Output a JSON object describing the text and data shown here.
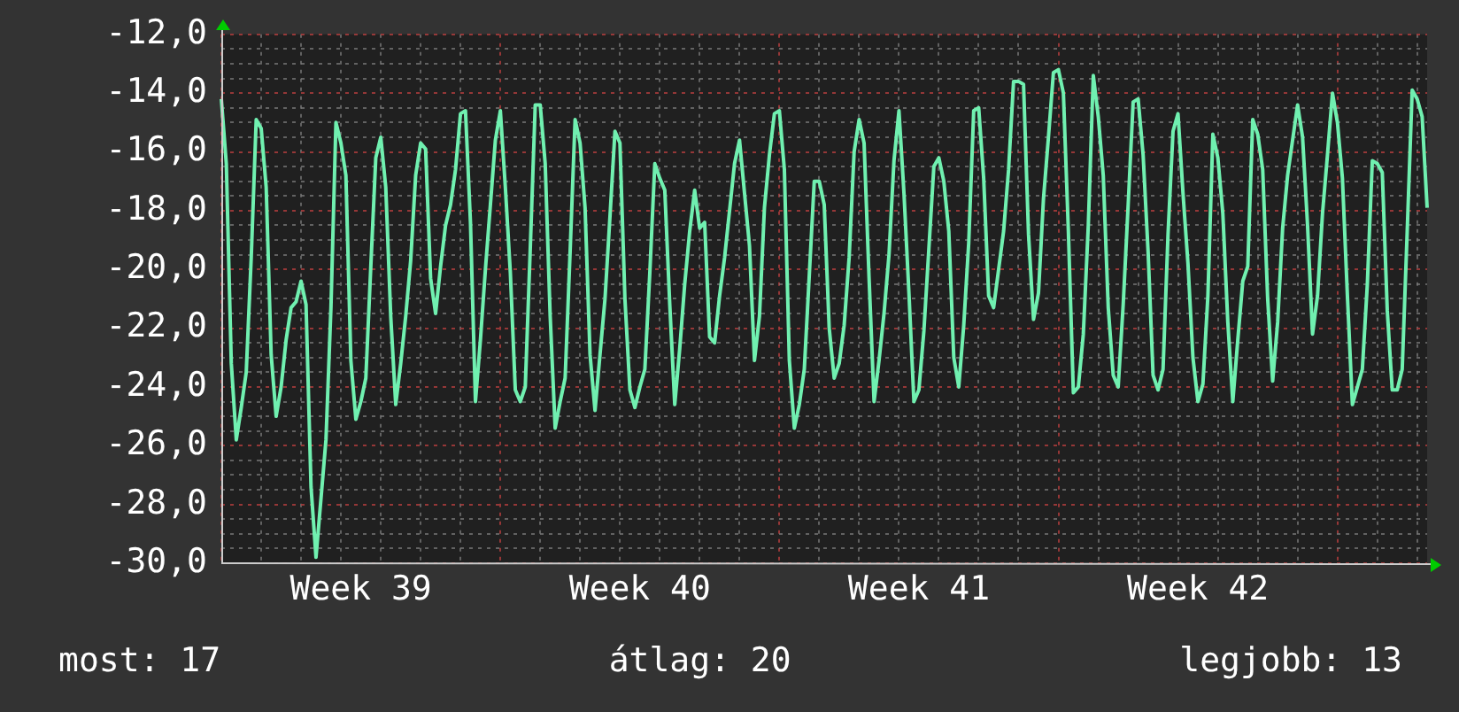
{
  "chart_data": {
    "type": "line",
    "grid": true,
    "legend": false,
    "marker": "none",
    "line_style": "solid",
    "ylim": [
      -30,
      -12
    ],
    "yticks": [
      {
        "value": -30,
        "label": "-30,0"
      },
      {
        "value": -29.5,
        "label": null
      },
      {
        "value": -29,
        "label": null
      },
      {
        "value": -28.5,
        "label": null
      },
      {
        "value": -28,
        "label": "-28,0"
      },
      {
        "value": -27.5,
        "label": null
      },
      {
        "value": -27,
        "label": null
      },
      {
        "value": -26.5,
        "label": null
      },
      {
        "value": -26,
        "label": "-26,0"
      },
      {
        "value": -25.5,
        "label": null
      },
      {
        "value": -25,
        "label": null
      },
      {
        "value": -24.5,
        "label": null
      },
      {
        "value": -24,
        "label": "-24,0"
      },
      {
        "value": -23.5,
        "label": null
      },
      {
        "value": -23,
        "label": null
      },
      {
        "value": -22.5,
        "label": null
      },
      {
        "value": -22,
        "label": "-22,0"
      },
      {
        "value": -21.5,
        "label": null
      },
      {
        "value": -21,
        "label": null
      },
      {
        "value": -20.5,
        "label": null
      },
      {
        "value": -20,
        "label": "-20,0"
      },
      {
        "value": -19.5,
        "label": null
      },
      {
        "value": -19,
        "label": null
      },
      {
        "value": -18.5,
        "label": null
      },
      {
        "value": -18,
        "label": "-18,0"
      },
      {
        "value": -17.5,
        "label": null
      },
      {
        "value": -17,
        "label": null
      },
      {
        "value": -16.5,
        "label": null
      },
      {
        "value": -16,
        "label": "-16,0"
      },
      {
        "value": -15.5,
        "label": null
      },
      {
        "value": -15,
        "label": null
      },
      {
        "value": -14.5,
        "label": null
      },
      {
        "value": -14,
        "label": "-14,0"
      },
      {
        "value": -13.5,
        "label": null
      },
      {
        "value": -13,
        "label": null
      },
      {
        "value": -12.5,
        "label": null
      },
      {
        "value": -12,
        "label": "-12,0"
      }
    ],
    "annotations": [
      "most: 17",
      "átlag: 20",
      "legjobb: 13"
    ],
    "categories": [
      null,
      null,
      null,
      null,
      null,
      null,
      null,
      null,
      null,
      null,
      null,
      null,
      null,
      null,
      null,
      null,
      null,
      null,
      null,
      null,
      null,
      null,
      null,
      null,
      null,
      null,
      null,
      null,
      "Week 39",
      null,
      null,
      null,
      null,
      null,
      null,
      null,
      null,
      null,
      null,
      null,
      null,
      null,
      null,
      null,
      null,
      null,
      null,
      null,
      null,
      null,
      null,
      null,
      null,
      null,
      null,
      null,
      null,
      null,
      null,
      null,
      null,
      null,
      null,
      null,
      null,
      null,
      null,
      null,
      null,
      null,
      null,
      null,
      null,
      null,
      null,
      null,
      null,
      null,
      null,
      null,
      null,
      null,
      null,
      null,
      "Week 40",
      null,
      null,
      null,
      null,
      null,
      null,
      null,
      null,
      null,
      null,
      null,
      null,
      null,
      null,
      null,
      null,
      null,
      null,
      null,
      null,
      null,
      null,
      null,
      null,
      null,
      null,
      null,
      null,
      null,
      null,
      null,
      null,
      null,
      null,
      null,
      null,
      null,
      null,
      null,
      null,
      null,
      null,
      null,
      null,
      null,
      null,
      null,
      null,
      null,
      null,
      null,
      null,
      null,
      null,
      null,
      "Week 41",
      null,
      null,
      null,
      null,
      null,
      null,
      null,
      null,
      null,
      null,
      null,
      null,
      null,
      null,
      null,
      null,
      null,
      null,
      null,
      null,
      null,
      null,
      null,
      null,
      null,
      null,
      null,
      null,
      null,
      null,
      null,
      null,
      null,
      null,
      null,
      null,
      null,
      null,
      null,
      null,
      null,
      null,
      null,
      null,
      null,
      null,
      null,
      null,
      null,
      null,
      null,
      null,
      null,
      null,
      null,
      "Week 42",
      null,
      null,
      null,
      null,
      null,
      null,
      null,
      null,
      null,
      null,
      null,
      null,
      null,
      null,
      null,
      null,
      null,
      null,
      null,
      null,
      null,
      null,
      null,
      null,
      null,
      null,
      null,
      null,
      null,
      null,
      null,
      null,
      null,
      null,
      null,
      null,
      null,
      null,
      null,
      null,
      null,
      null,
      null,
      null,
      null,
      null
    ],
    "series": [
      {
        "color": "#70f0b0",
        "values": [
          -14.2,
          -16.4,
          -23.2,
          -25.8,
          -24.7,
          -23.5,
          -19.6,
          -14.9,
          -15.2,
          -17.2,
          -22.9,
          -25.0,
          -24.0,
          -22.4,
          -21.3,
          -21.1,
          -20.4,
          -21.2,
          -27.4,
          -29.8,
          -27.8,
          -25.8,
          -21.3,
          -15.0,
          -15.7,
          -16.8,
          -23.1,
          -25.1,
          -24.5,
          -23.7,
          -19.9,
          -16.2,
          -15.5,
          -17.2,
          -21.6,
          -24.6,
          -23.2,
          -21.6,
          -19.7,
          -16.8,
          -15.7,
          -15.9,
          -20.3,
          -21.5,
          -19.9,
          -18.5,
          -17.8,
          -16.6,
          -14.7,
          -14.6,
          -18.4,
          -24.5,
          -22.4,
          -20.0,
          -17.8,
          -15.6,
          -14.6,
          -17.2,
          -20.1,
          -24.1,
          -24.5,
          -24.0,
          -19.3,
          -14.4,
          -14.4,
          -16.4,
          -21.6,
          -25.4,
          -24.5,
          -23.7,
          -19.4,
          -14.9,
          -15.7,
          -17.9,
          -22.9,
          -24.8,
          -22.9,
          -21.0,
          -18.2,
          -15.3,
          -15.7,
          -21.0,
          -24.1,
          -24.7,
          -24.0,
          -23.4,
          -20.1,
          -16.4,
          -16.9,
          -17.3,
          -21.2,
          -24.6,
          -22.7,
          -20.5,
          -18.7,
          -17.3,
          -18.6,
          -18.4,
          -22.3,
          -22.5,
          -20.9,
          -19.6,
          -18.0,
          -16.4,
          -15.6,
          -17.4,
          -19.2,
          -23.1,
          -21.6,
          -17.9,
          -16.1,
          -14.7,
          -14.6,
          -16.6,
          -23.1,
          -25.4,
          -24.6,
          -23.4,
          -20.2,
          -17.0,
          -17.0,
          -17.8,
          -22.0,
          -23.7,
          -23.2,
          -21.9,
          -19.6,
          -16.0,
          -14.9,
          -15.7,
          -20.3,
          -24.5,
          -23.1,
          -21.5,
          -19.5,
          -16.3,
          -14.6,
          -17.4,
          -20.8,
          -24.5,
          -24.1,
          -22.1,
          -19.3,
          -16.5,
          -16.2,
          -17.0,
          -18.7,
          -23.0,
          -24.0,
          -21.9,
          -19.1,
          -14.6,
          -14.5,
          -16.9,
          -20.9,
          -21.3,
          -20.0,
          -18.7,
          -16.6,
          -13.6,
          -13.6,
          -13.7,
          -18.8,
          -21.7,
          -20.8,
          -17.6,
          -15.5,
          -13.3,
          -13.2,
          -14.0,
          -18.7,
          -24.2,
          -24.0,
          -22.2,
          -18.5,
          -13.4,
          -14.8,
          -16.8,
          -21.3,
          -23.6,
          -24.0,
          -21.2,
          -17.8,
          -14.3,
          -14.2,
          -16.1,
          -19.4,
          -23.6,
          -24.1,
          -23.4,
          -18.8,
          -15.3,
          -14.7,
          -17.4,
          -19.8,
          -23.0,
          -24.5,
          -23.9,
          -20.9,
          -15.4,
          -16.2,
          -18.1,
          -21.8,
          -24.5,
          -22.4,
          -20.4,
          -19.9,
          -14.9,
          -15.4,
          -16.6,
          -21.0,
          -23.8,
          -21.8,
          -18.6,
          -16.8,
          -15.6,
          -14.4,
          -15.5,
          -18.5,
          -22.2,
          -20.9,
          -18.1,
          -16.1,
          -14.0,
          -15.0,
          -16.9,
          -20.9,
          -24.6,
          -24.0,
          -23.4,
          -20.5,
          -16.3,
          -16.4,
          -16.7,
          -21.4,
          -24.1,
          -24.1,
          -23.4,
          -18.7,
          -13.9,
          -14.2,
          -14.8,
          -17.9
        ]
      }
    ]
  }
}
